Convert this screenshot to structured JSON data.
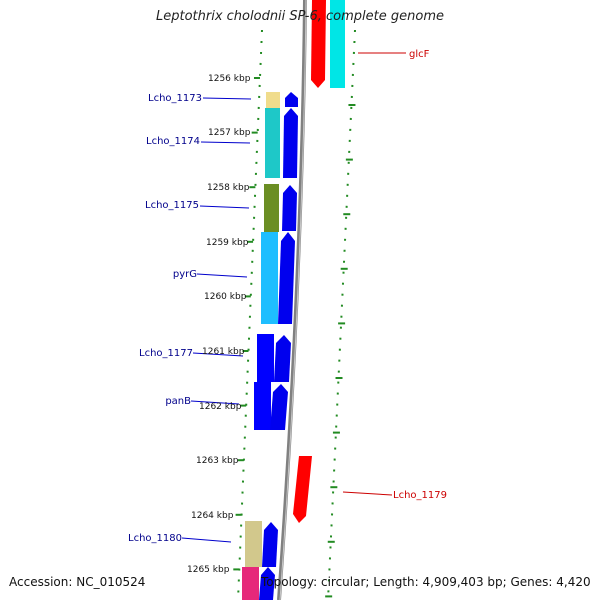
{
  "title": "Leptothrix cholodnii SP-6, complete genome",
  "footer": {
    "accession": "Accession: NC_010524",
    "summary": "Topology: circular; Length: 4,909,403 bp; Genes: 4,420"
  },
  "scale": {
    "unit_labels": [
      "1256 kbp",
      "1257 kbp",
      "1258 kbp",
      "1259 kbp",
      "1260 kbp",
      "1261 kbp",
      "1262 kbp",
      "1263 kbp",
      "1264 kbp",
      "1265 kbp"
    ]
  },
  "genes": {
    "forward": [
      {
        "label": "Lcho_1173",
        "color": "#0000ff",
        "cds_color": "#f0dc8c"
      },
      {
        "label": "Lcho_1174",
        "color": "#0000ff",
        "cds_color": "#1ec8c8"
      },
      {
        "label": "Lcho_1175",
        "color": "#0000ff",
        "cds_color": "#6b8e23"
      },
      {
        "label": "pyrG",
        "color": "#0000ff",
        "cds_color": "#1ebeff"
      },
      {
        "label": "Lcho_1177",
        "color": "#0000ff",
        "cds_color": "#0000ff"
      },
      {
        "label": "panB",
        "color": "#0000ff",
        "cds_color": "#0000ff"
      },
      {
        "label": "Lcho_1180",
        "color": "#0000ff",
        "cds_color": "#d2c88c"
      }
    ],
    "reverse": [
      {
        "label": "glcF",
        "color": "#ff0000",
        "cds_color": "#00e6e6"
      },
      {
        "label": "Lcho_1179",
        "color": "#ff0000"
      }
    ]
  },
  "colors": {
    "forward_label": "#00008b",
    "reverse_label": "#cc0000",
    "tick": "#228b22",
    "backbone": "#808080"
  }
}
